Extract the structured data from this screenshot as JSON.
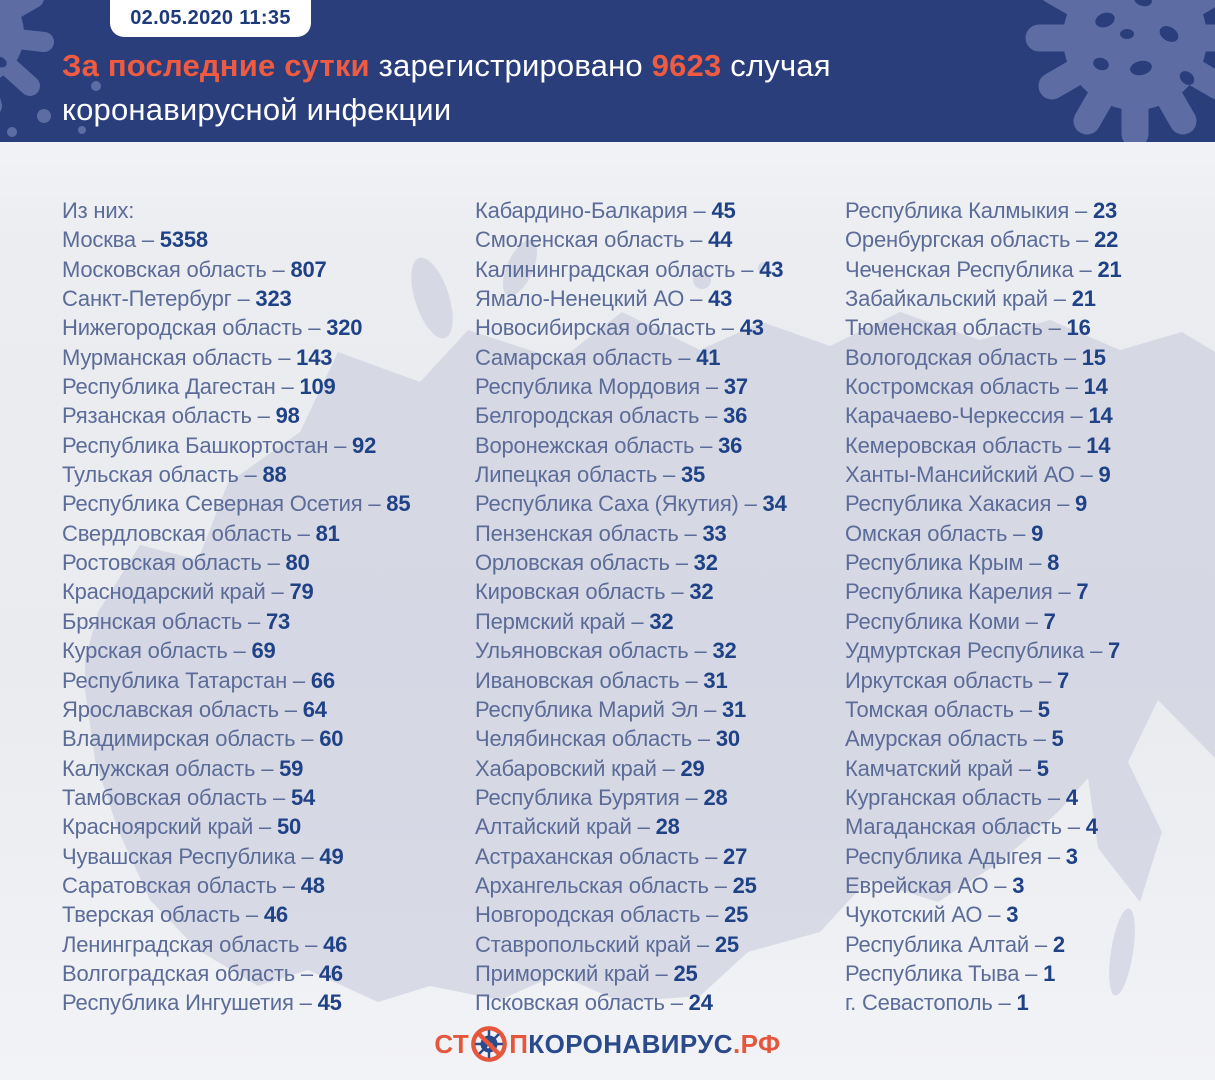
{
  "header": {
    "timestamp": "02.05.2020 11:35",
    "title_line1": [
      {
        "text": "За последние сутки ",
        "accent": true
      },
      {
        "text": "зарегистрировано ",
        "accent": false
      },
      {
        "text": "9623",
        "accent": true
      },
      {
        "text": " случая",
        "accent": false
      }
    ],
    "title_line2": "коронавирусной инфекции"
  },
  "regions": {
    "intro_label": "Из них:",
    "separator": " – ",
    "columns": [
      [
        {
          "name": "Москва",
          "value": 5358
        },
        {
          "name": "Московская область",
          "value": 807
        },
        {
          "name": "Санкт-Петербург",
          "value": 323
        },
        {
          "name": "Нижегородская область",
          "value": 320
        },
        {
          "name": "Мурманская область",
          "value": 143
        },
        {
          "name": "Республика Дагестан",
          "value": 109
        },
        {
          "name": "Рязанская область",
          "value": 98
        },
        {
          "name": "Республика Башкортостан",
          "value": 92
        },
        {
          "name": "Тульская область",
          "value": 88
        },
        {
          "name": "Республика Северная Осетия",
          "value": 85
        },
        {
          "name": "Свердловская область",
          "value": 81
        },
        {
          "name": "Ростовская область",
          "value": 80
        },
        {
          "name": "Краснодарский край",
          "value": 79
        },
        {
          "name": "Брянская область",
          "value": 73
        },
        {
          "name": "Курская область",
          "value": 69
        },
        {
          "name": "Республика Татарстан",
          "value": 66
        },
        {
          "name": "Ярославская область",
          "value": 64
        },
        {
          "name": "Владимирская область",
          "value": 60
        },
        {
          "name": "Калужская область",
          "value": 59
        },
        {
          "name": "Тамбовская область",
          "value": 54
        },
        {
          "name": "Красноярский край",
          "value": 50
        },
        {
          "name": "Чувашская Республика",
          "value": 49
        },
        {
          "name": "Саратовская область",
          "value": 48
        },
        {
          "name": "Тверская область",
          "value": 46
        },
        {
          "name": "Ленинградская область",
          "value": 46
        },
        {
          "name": "Волгоградская область",
          "value": 46
        },
        {
          "name": "Республика Ингушетия",
          "value": 45
        }
      ],
      [
        {
          "name": "Кабардино-Балкария",
          "value": 45
        },
        {
          "name": "Смоленская область",
          "value": 44
        },
        {
          "name": "Калининградская область",
          "value": 43
        },
        {
          "name": "Ямало-Ненецкий АО",
          "value": 43
        },
        {
          "name": "Новосибирская область",
          "value": 43
        },
        {
          "name": "Самарская область",
          "value": 41
        },
        {
          "name": "Республика Мордовия",
          "value": 37
        },
        {
          "name": "Белгородская область",
          "value": 36
        },
        {
          "name": "Воронежская область",
          "value": 36
        },
        {
          "name": "Липецкая область",
          "value": 35
        },
        {
          "name": "Республика Саха (Якутия)",
          "value": 34
        },
        {
          "name": "Пензенская область",
          "value": 33
        },
        {
          "name": "Орловская область",
          "value": 32
        },
        {
          "name": "Кировская область",
          "value": 32
        },
        {
          "name": "Пермский край",
          "value": 32
        },
        {
          "name": "Ульяновская область",
          "value": 32
        },
        {
          "name": "Ивановская область",
          "value": 31
        },
        {
          "name": "Республика Марий Эл",
          "value": 31
        },
        {
          "name": "Челябинская область",
          "value": 30
        },
        {
          "name": "Хабаровский край",
          "value": 29
        },
        {
          "name": "Республика Бурятия",
          "value": 28
        },
        {
          "name": "Алтайский край",
          "value": 28
        },
        {
          "name": "Астраханская область",
          "value": 27
        },
        {
          "name": "Архангельская область",
          "value": 25
        },
        {
          "name": "Новгородская область",
          "value": 25
        },
        {
          "name": "Ставропольский край",
          "value": 25
        },
        {
          "name": "Приморский край",
          "value": 25
        },
        {
          "name": "Псковская область",
          "value": 24
        }
      ],
      [
        {
          "name": "Республика Калмыкия",
          "value": 23
        },
        {
          "name": "Оренбургская область",
          "value": 22
        },
        {
          "name": "Чеченская Республика",
          "value": 21
        },
        {
          "name": "Забайкальский край",
          "value": 21
        },
        {
          "name": "Тюменская область",
          "value": 16
        },
        {
          "name": "Вологодская область",
          "value": 15
        },
        {
          "name": "Костромская область",
          "value": 14
        },
        {
          "name": "Карачаево-Черкессия",
          "value": 14
        },
        {
          "name": "Кемеровская область",
          "value": 14
        },
        {
          "name": "Ханты-Мансийский АО",
          "value": 9
        },
        {
          "name": "Республика Хакасия",
          "value": 9
        },
        {
          "name": "Омская область",
          "value": 9
        },
        {
          "name": "Республика Крым",
          "value": 8
        },
        {
          "name": "Республика Карелия",
          "value": 7
        },
        {
          "name": "Республика Коми",
          "value": 7
        },
        {
          "name": "Удмуртская Республика",
          "value": 7
        },
        {
          "name": "Иркутская область",
          "value": 7
        },
        {
          "name": "Томская область",
          "value": 5
        },
        {
          "name": "Амурская область",
          "value": 5
        },
        {
          "name": "Камчатский край",
          "value": 5
        },
        {
          "name": "Курганская область",
          "value": 4
        },
        {
          "name": "Магаданская область",
          "value": 4
        },
        {
          "name": "Республика Адыгея",
          "value": 3
        },
        {
          "name": "Еврейская АО",
          "value": 3
        },
        {
          "name": "Чукотский АО",
          "value": 3
        },
        {
          "name": "Республика Алтай",
          "value": 2
        },
        {
          "name": "Республика Тыва",
          "value": 1
        },
        {
          "name": "г. Севастополь",
          "value": 1
        }
      ]
    ]
  },
  "footer": {
    "logo_prefix": "СТ",
    "logo_after_icon": "П",
    "logo_middle": "КОРОНАВИРУС",
    "logo_suffix": ".РФ",
    "logo_icon": "no-virus-icon"
  },
  "colors": {
    "header_bg": "#2a3e7c",
    "accent_orange": "#ef5b41",
    "badge_text": "#1d3a7a",
    "region_name": "#5b6c98",
    "region_value": "#1f4185",
    "map_fill": "#c8ccdd",
    "logo_orange": "#e4573d",
    "logo_blue": "#2b4a8b",
    "header_virus_deco": "#5d6da3"
  }
}
